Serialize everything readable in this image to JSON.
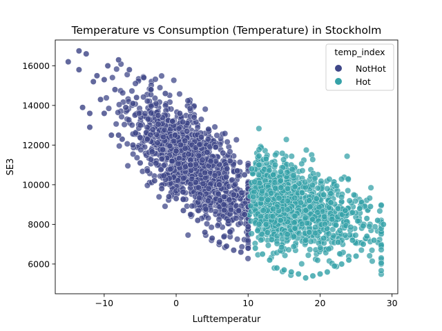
{
  "chart_data": {
    "type": "scatter",
    "title": "Temperature vs Consumption (Temperature) in Stockholm",
    "xlabel": "Lufttemperatur",
    "ylabel": "SE3",
    "xlim": [
      -16.8,
      30.8
    ],
    "ylim": [
      4500,
      17300
    ],
    "xticks": [
      -10,
      0,
      10,
      20,
      30
    ],
    "xtick_labels": [
      "−10",
      "0",
      "10",
      "20",
      "30"
    ],
    "yticks": [
      6000,
      8000,
      10000,
      12000,
      14000,
      16000
    ],
    "ytick_labels": [
      "6000",
      "8000",
      "10000",
      "12000",
      "14000",
      "16000"
    ],
    "grid": false,
    "legend": {
      "title": "temp_index",
      "placement": "top-right",
      "entries": [
        {
          "label": "NotHot",
          "color": "#3f4788"
        },
        {
          "label": "Hot",
          "color": "#35a2a8"
        }
      ]
    },
    "series": [
      {
        "name": "NotHot",
        "color": "#3f4788",
        "relationship": "SE3 ≈ 11700 − 280 × Lufttemperatur, spread ±1300, for Lufttemperatur ≤ 10",
        "x": [
          -15.0,
          -13.5,
          -13.0,
          -12.5,
          -12.0,
          -11.5,
          -11.0,
          -10.5,
          -10.0,
          -9.5,
          -9.0,
          -8.5,
          -8.0,
          -7.5,
          -7.0,
          -6.5,
          -6.0,
          -5.5,
          -5.0,
          -4.5,
          -4.0,
          -3.5,
          -3.0,
          -2.5,
          -2.0,
          -1.5,
          -1.0,
          -0.5,
          0.0,
          0.5,
          1.0,
          1.5,
          2.0,
          2.5,
          3.0,
          3.5,
          4.0,
          4.5,
          5.0,
          5.5,
          6.0,
          6.5,
          7.0,
          7.5,
          8.0,
          8.5,
          9.0,
          9.5,
          10.0,
          -13.5,
          -12.0,
          -10.0,
          -8.0,
          -6.0,
          -4.0,
          -2.0,
          0.0,
          2.0,
          4.0,
          6.0,
          8.0,
          9.5
        ],
        "y": [
          16200,
          16750,
          13900,
          16600,
          12900,
          15200,
          15500,
          14300,
          13600,
          16000,
          12500,
          14800,
          16300,
          12300,
          13900,
          15800,
          12000,
          14400,
          11100,
          15400,
          10700,
          14800,
          10200,
          13500,
          9800,
          14600,
          9400,
          13200,
          9300,
          13600,
          8700,
          12700,
          8500,
          13400,
          8200,
          12400,
          7600,
          12800,
          7300,
          11900,
          7100,
          11600,
          6900,
          11200,
          6700,
          10700,
          6600,
          10500,
          6800,
          15800,
          13600,
          15300,
          12500,
          14100,
          12300,
          11300,
          11700,
          11000,
          10600,
          10000,
          9500,
          8500
        ]
      },
      {
        "name": "Hot",
        "color": "#35a2a8",
        "relationship": "SE3 ≈ 9500 − 100 × (Lufttemperatur − 10), spread ±1300, for Lufttemperatur > 10",
        "x": [
          10.5,
          11.0,
          11.5,
          12.0,
          12.5,
          13.0,
          13.5,
          14.0,
          14.5,
          15.0,
          15.5,
          16.0,
          16.5,
          17.0,
          17.5,
          18.0,
          18.5,
          19.0,
          19.5,
          20.0,
          20.5,
          21.0,
          21.5,
          22.0,
          22.5,
          23.0,
          23.5,
          24.0,
          24.5,
          25.0,
          25.5,
          26.0,
          26.5,
          27.0,
          27.5,
          28.0,
          28.8,
          12.5,
          14.5,
          16.5,
          18.5,
          20.5,
          22.5,
          24.5,
          26.5
        ],
        "y": [
          10800,
          6800,
          11000,
          6500,
          11300,
          6200,
          10500,
          5800,
          10200,
          5700,
          9800,
          5600,
          9900,
          5500,
          9600,
          5300,
          9200,
          5400,
          9300,
          5500,
          9500,
          5600,
          9100,
          5900,
          8800,
          6000,
          8700,
          6200,
          8600,
          6400,
          8800,
          7000,
          8300,
          8900,
          7200,
          8200,
          8000,
          8000,
          8200,
          7800,
          7600,
          7300,
          7100,
          7200,
          7400
        ]
      }
    ]
  }
}
